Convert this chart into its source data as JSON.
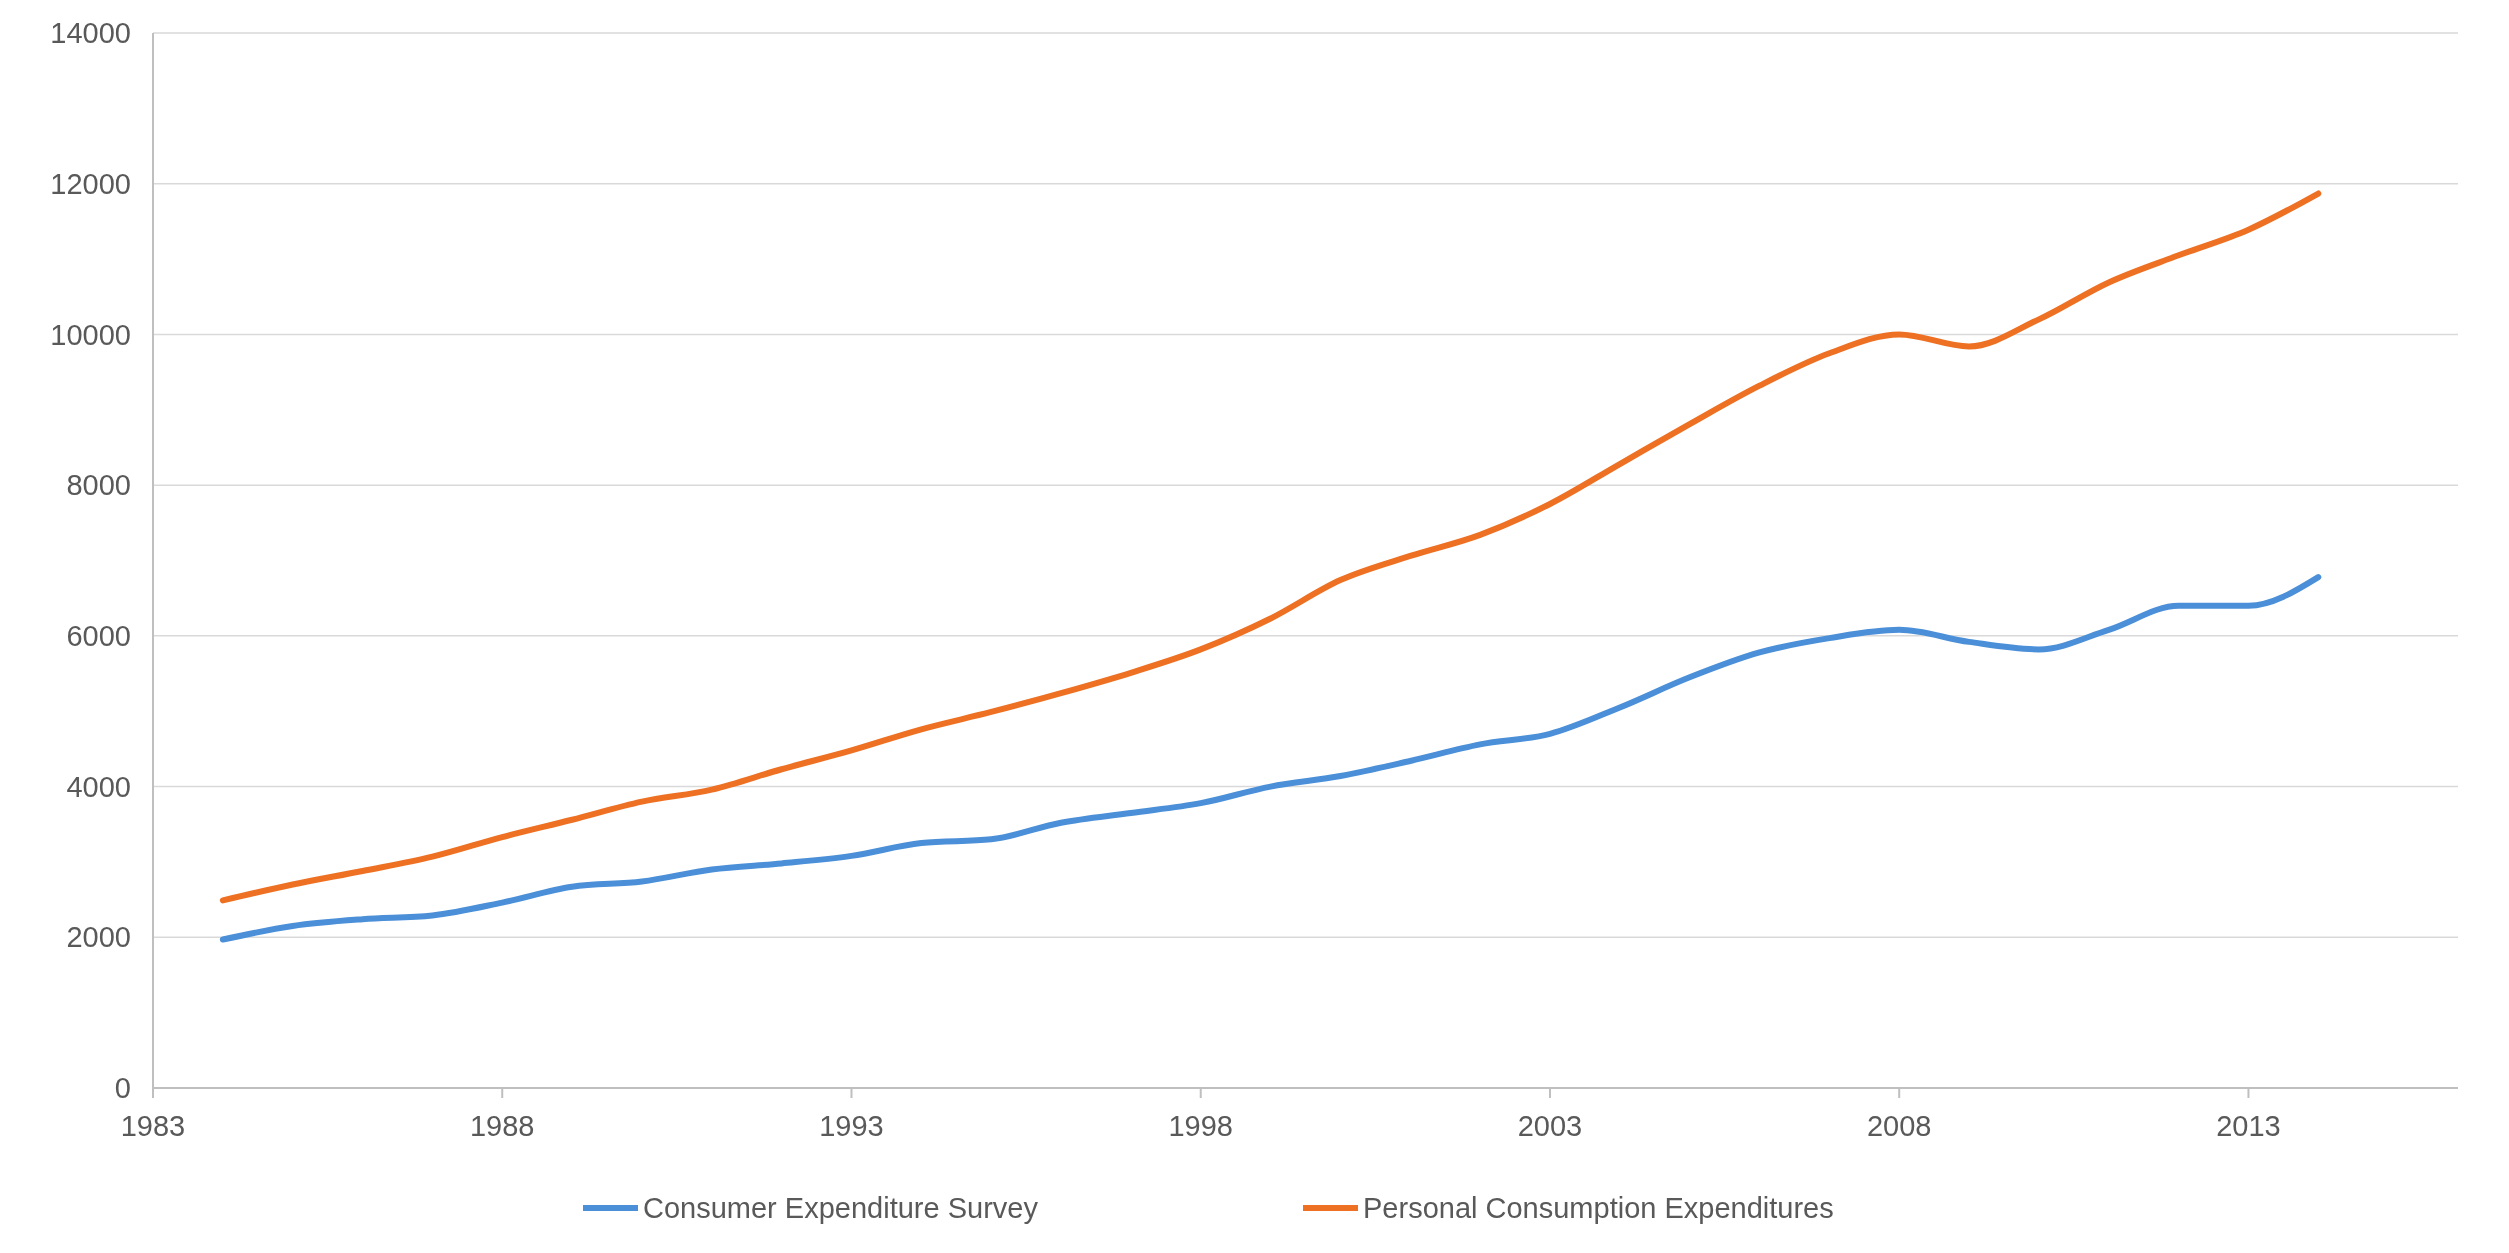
{
  "chart_data": {
    "type": "line",
    "x": [
      1984,
      1985,
      1986,
      1987,
      1988,
      1989,
      1990,
      1991,
      1992,
      1993,
      1994,
      1995,
      1996,
      1997,
      1998,
      1999,
      2000,
      2001,
      2002,
      2003,
      2004,
      2005,
      2006,
      2007,
      2008,
      2009,
      2010,
      2011,
      2012,
      2013,
      2014
    ],
    "series": [
      {
        "name": "Consumer Expenditure Survey",
        "color": "#4a8fd8",
        "values": [
          1970,
          2150,
          2240,
          2290,
          2460,
          2670,
          2740,
          2900,
          2980,
          3080,
          3250,
          3300,
          3520,
          3650,
          3780,
          4000,
          4140,
          4340,
          4560,
          4700,
          5050,
          5450,
          5780,
          5970,
          6080,
          5920,
          5820,
          6080,
          6400,
          6400,
          6780
        ]
      },
      {
        "name": "Personal Consumption Expenditures",
        "color": "#ed7023",
        "values": [
          2490,
          2700,
          2880,
          3070,
          3330,
          3560,
          3800,
          3960,
          4230,
          4480,
          4760,
          4990,
          5240,
          5510,
          5820,
          6230,
          6740,
          7060,
          7340,
          7750,
          8280,
          8810,
          9320,
          9750,
          10000,
          9840,
          10200,
          10690,
          11050,
          11390,
          11870
        ]
      }
    ],
    "xlim": [
      1983,
      2016
    ],
    "xticks": [
      1983,
      1988,
      1993,
      1998,
      2003,
      2008,
      2013
    ],
    "ylim": [
      0,
      14000
    ],
    "yticks": [
      0,
      2000,
      4000,
      6000,
      8000,
      10000,
      12000,
      14000
    ],
    "grid": "y",
    "legend": "bottom",
    "marker": "none",
    "line_style": "solid"
  }
}
